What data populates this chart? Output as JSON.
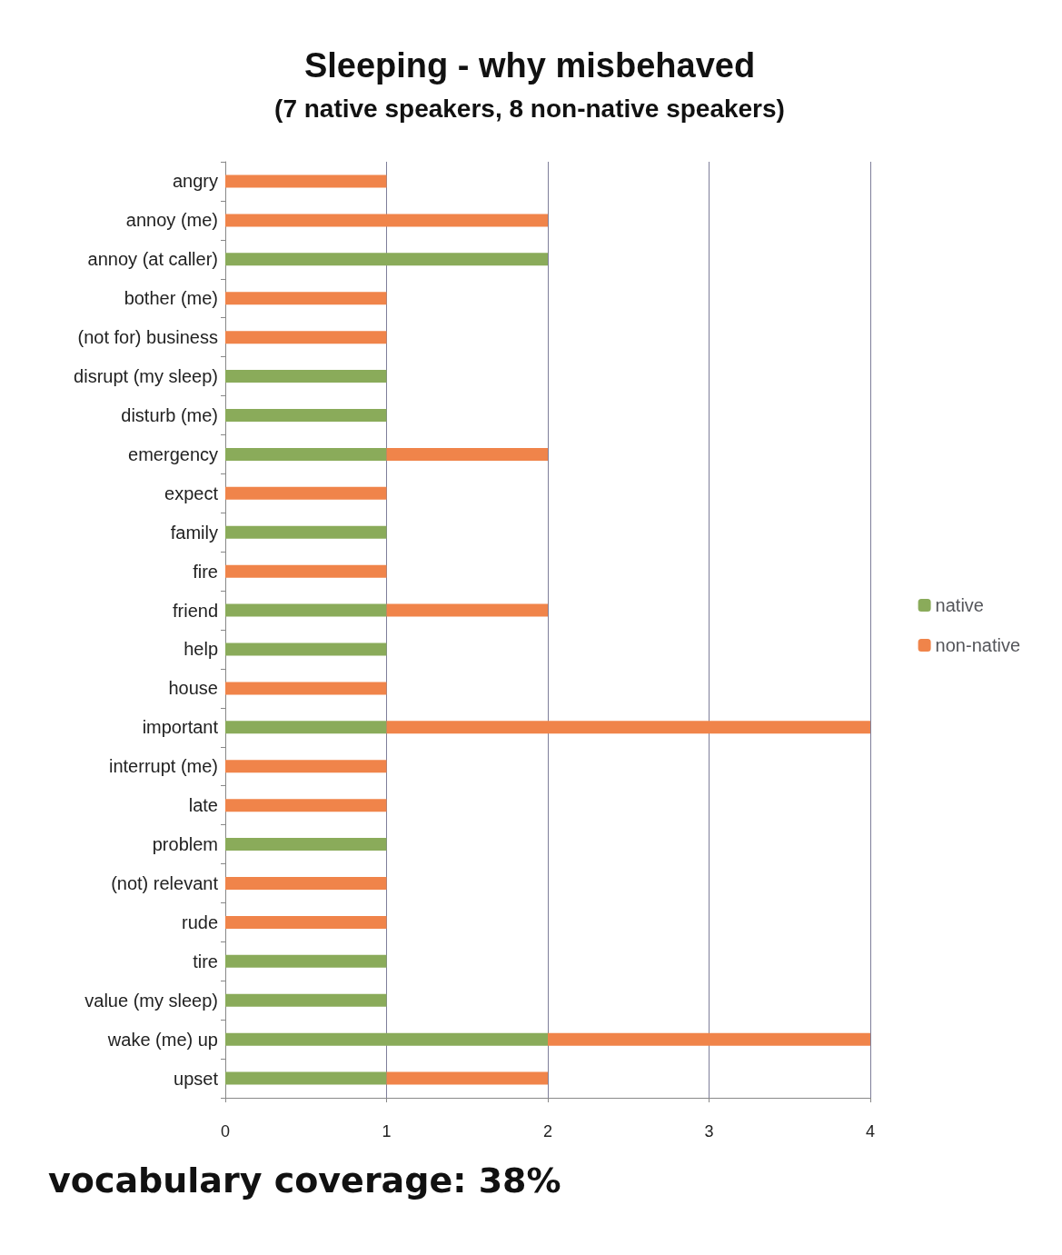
{
  "chart_data": {
    "type": "bar",
    "orientation": "horizontal",
    "stacked": true,
    "title": "Sleeping - why misbehaved",
    "subtitle": "(7 native speakers, 8 non-native speakers)",
    "categories": [
      "angry",
      "annoy (me)",
      "annoy (at caller)",
      "bother (me)",
      "(not for) business",
      "disrupt (my sleep)",
      "disturb (me)",
      "emergency",
      "expect",
      "family",
      "fire",
      "friend",
      "help",
      "house",
      "important",
      "interrupt (me)",
      "late",
      "problem",
      "(not) relevant",
      "rude",
      "tire",
      "value (my sleep)",
      "wake (me) up",
      "upset"
    ],
    "series": [
      {
        "name": "native",
        "color": "#8aab5a",
        "values": [
          0,
          0,
          2,
          0,
          0,
          1,
          1,
          1,
          0,
          1,
          0,
          1,
          1,
          0,
          1,
          0,
          0,
          1,
          0,
          0,
          1,
          1,
          2,
          1
        ]
      },
      {
        "name": "non-native",
        "color": "#f0844a",
        "values": [
          1,
          2,
          0,
          1,
          1,
          0,
          0,
          1,
          1,
          0,
          1,
          1,
          0,
          1,
          3,
          1,
          1,
          0,
          1,
          1,
          0,
          0,
          2,
          1
        ]
      }
    ],
    "xlim": [
      0,
      4
    ],
    "xticks": [
      0,
      1,
      2,
      3,
      4
    ],
    "grid": "x",
    "legend": "right",
    "annotations": [
      "vocabulary coverage: 38%"
    ]
  }
}
